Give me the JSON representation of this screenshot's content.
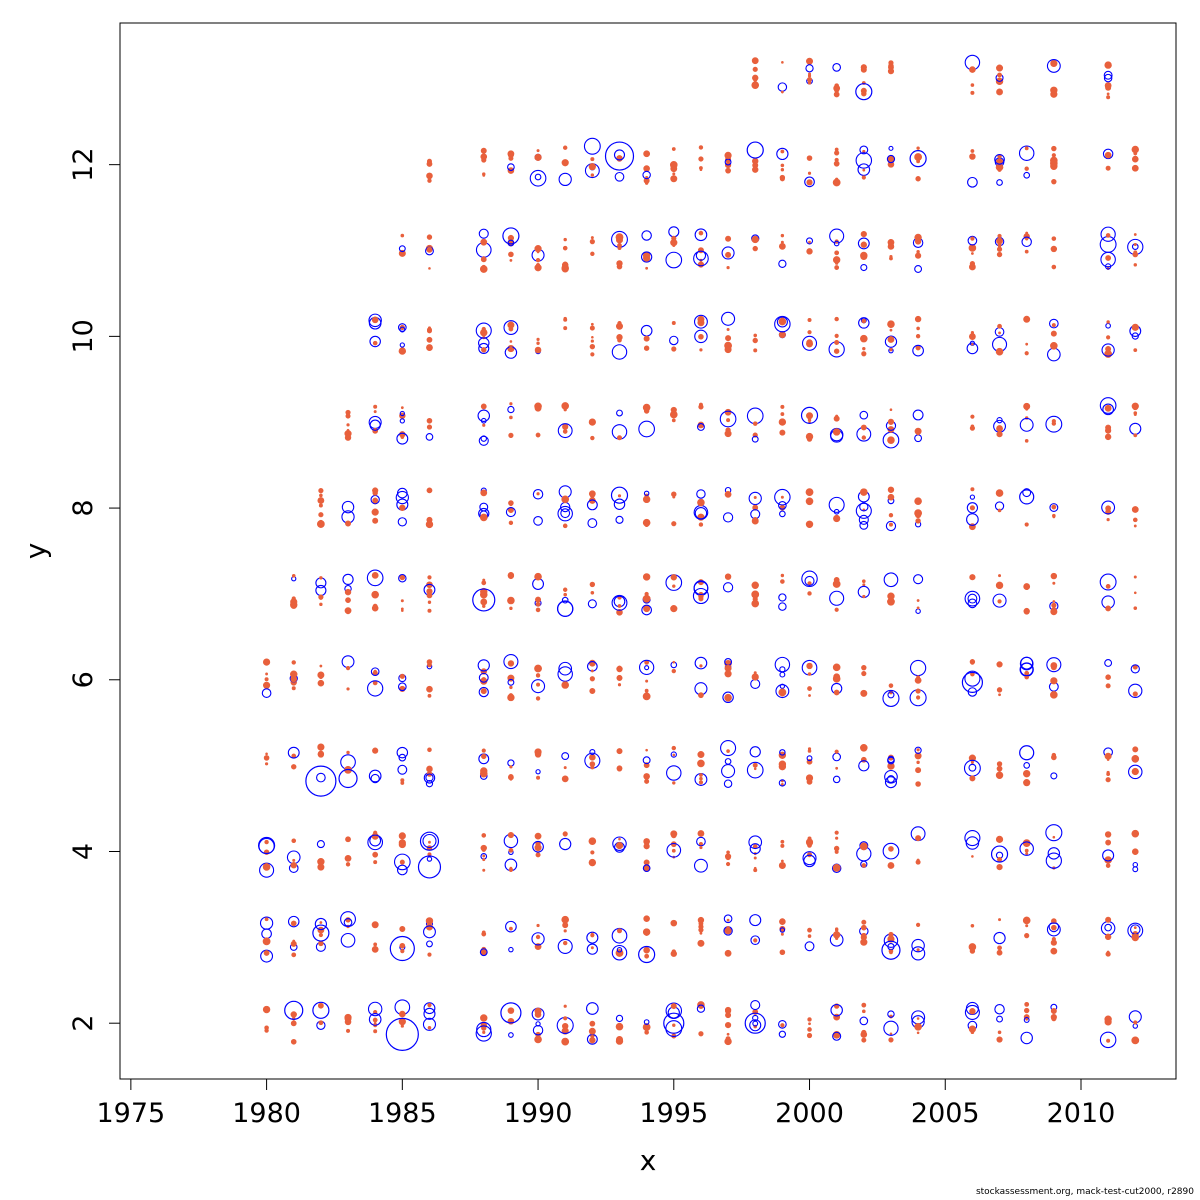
{
  "chart_data": {
    "type": "scatter",
    "title": "",
    "xlabel": "x",
    "ylabel": "y",
    "xlim": [
      1974.6,
      2013.5
    ],
    "ylim": [
      1.35,
      13.65
    ],
    "x_ticks": [
      1975,
      1980,
      1985,
      1990,
      1995,
      2000,
      2005,
      2010
    ],
    "y_ticks": [
      2,
      4,
      6,
      8,
      10,
      12
    ],
    "grid": false,
    "legend": "none",
    "years": [
      1980,
      1981,
      1982,
      1983,
      1984,
      1985,
      1986,
      1988,
      1989,
      1990,
      1991,
      1992,
      1993,
      1994,
      1995,
      1996,
      1997,
      1998,
      1999,
      2000,
      2001,
      2002,
      2003,
      2004,
      2006,
      2007,
      2008,
      2009,
      2011,
      2012
    ],
    "ages": [
      2,
      3,
      4,
      5,
      6,
      7,
      8,
      9,
      10,
      11,
      12,
      13
    ],
    "first_age_row": {
      "1980": 2,
      "1981": 2,
      "1982": 2,
      "1983": 2,
      "1984": 2,
      "1985": 2,
      "1986": 2,
      "1988": 2,
      "1989": 2,
      "1990": 2,
      "1991": 2,
      "1992": 2,
      "1993": 2,
      "1994": 2,
      "1995": 2,
      "1996": 2,
      "1997": 2,
      "1998": 2,
      "1999": 2,
      "2000": 2,
      "2001": 2,
      "2002": 2,
      "2003": 2,
      "2004": 2,
      "2006": 2,
      "2007": 2,
      "2008": 2,
      "2009": 2,
      "2011": 2,
      "2012": 2
    },
    "last_age": {
      "1980": 6,
      "1981": 7,
      "1982": 8,
      "1983": 9,
      "1984": 10,
      "1985": 11,
      "1986": 12,
      "1988": 12,
      "1989": 12,
      "1990": 12,
      "1991": 12,
      "1992": 12,
      "1993": 12,
      "1994": 12,
      "1995": 12,
      "1996": 12,
      "1997": 12,
      "1998": 13,
      "1999": 13,
      "2000": 13,
      "2001": 13,
      "2002": 13,
      "2003": 13,
      "2004": 12,
      "2006": 13,
      "2007": 13,
      "2008": 12,
      "2009": 13,
      "2011": 13,
      "2012": 12
    },
    "series": [
      {
        "marker": "open-circle",
        "color": "#0000ff",
        "large_points": [
          {
            "x": 1980,
            "y": 4.07,
            "r": 8
          },
          {
            "x": 1981,
            "y": 2.15,
            "r": 9
          },
          {
            "x": 1982,
            "y": 4.82,
            "r": 15
          },
          {
            "x": 1982,
            "y": 2.15,
            "r": 8
          },
          {
            "x": 1982,
            "y": 3.05,
            "r": 8
          },
          {
            "x": 1983,
            "y": 4.85,
            "r": 9
          },
          {
            "x": 1985,
            "y": 1.87,
            "r": 16
          },
          {
            "x": 1985,
            "y": 2.87,
            "r": 12
          },
          {
            "x": 1986,
            "y": 3.82,
            "r": 11
          },
          {
            "x": 1986,
            "y": 4.12,
            "r": 9
          },
          {
            "x": 1988,
            "y": 6.93,
            "r": 11
          },
          {
            "x": 1989,
            "y": 11.17,
            "r": 8
          },
          {
            "x": 1989,
            "y": 2.12,
            "r": 10
          },
          {
            "x": 1993,
            "y": 12.1,
            "r": 14
          },
          {
            "x": 1993,
            "y": 8.15,
            "r": 8
          },
          {
            "x": 1994,
            "y": 2.8,
            "r": 8
          },
          {
            "x": 1995,
            "y": 2.0,
            "r": 10
          },
          {
            "x": 1998,
            "y": 12.17,
            "r": 8
          },
          {
            "x": 1998,
            "y": 2.0,
            "r": 10
          },
          {
            "x": 2000,
            "y": 9.08,
            "r": 8
          },
          {
            "x": 2002,
            "y": 12.85,
            "r": 8
          },
          {
            "x": 2003,
            "y": 2.85,
            "r": 9
          },
          {
            "x": 2004,
            "y": 12.07,
            "r": 8
          },
          {
            "x": 2006,
            "y": 5.97,
            "r": 10
          },
          {
            "x": 2007,
            "y": 3.97,
            "r": 8
          },
          {
            "x": 2008,
            "y": 8.13,
            "r": 7
          },
          {
            "x": 2008,
            "y": 5.15,
            "r": 7
          }
        ]
      },
      {
        "marker": "filled-dot",
        "color": "#e8603c"
      }
    ]
  },
  "footer": "stockassessment.org, mack-test-cut2000, r2890"
}
